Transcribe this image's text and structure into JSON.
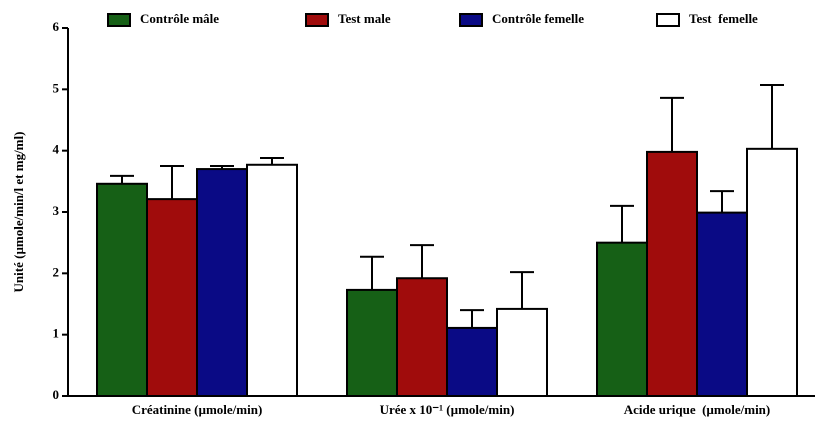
{
  "chart_data": {
    "type": "bar",
    "ylabel": "Unité (µmole/min/l et mg/ml)",
    "categories": [
      "Créatinine (µmole/min)",
      "Urée x 10⁻¹ (µmole/min)",
      "Acide urique  (µmole/min)"
    ],
    "series": [
      {
        "name": "Contrôle mâle",
        "color": "#166016",
        "values": [
          3.46,
          1.73,
          2.5
        ],
        "errors": [
          0.13,
          0.54,
          0.6
        ]
      },
      {
        "name": "Test male",
        "color": "#a00c0c",
        "values": [
          3.21,
          1.92,
          3.98
        ],
        "errors": [
          0.54,
          0.54,
          0.88
        ]
      },
      {
        "name": "Contrôle femelle",
        "color": "#0a0a85",
        "values": [
          3.7,
          1.11,
          2.99
        ],
        "errors": [
          0.05,
          0.29,
          0.35
        ]
      },
      {
        "name": "Test  femelle",
        "color": "#ffffff",
        "values": [
          3.77,
          1.42,
          4.03
        ],
        "errors": [
          0.11,
          0.6,
          1.04
        ]
      }
    ],
    "ylim": [
      0,
      6
    ],
    "yticks": [
      0,
      1,
      2,
      3,
      4,
      5,
      6
    ],
    "legend": "top"
  }
}
